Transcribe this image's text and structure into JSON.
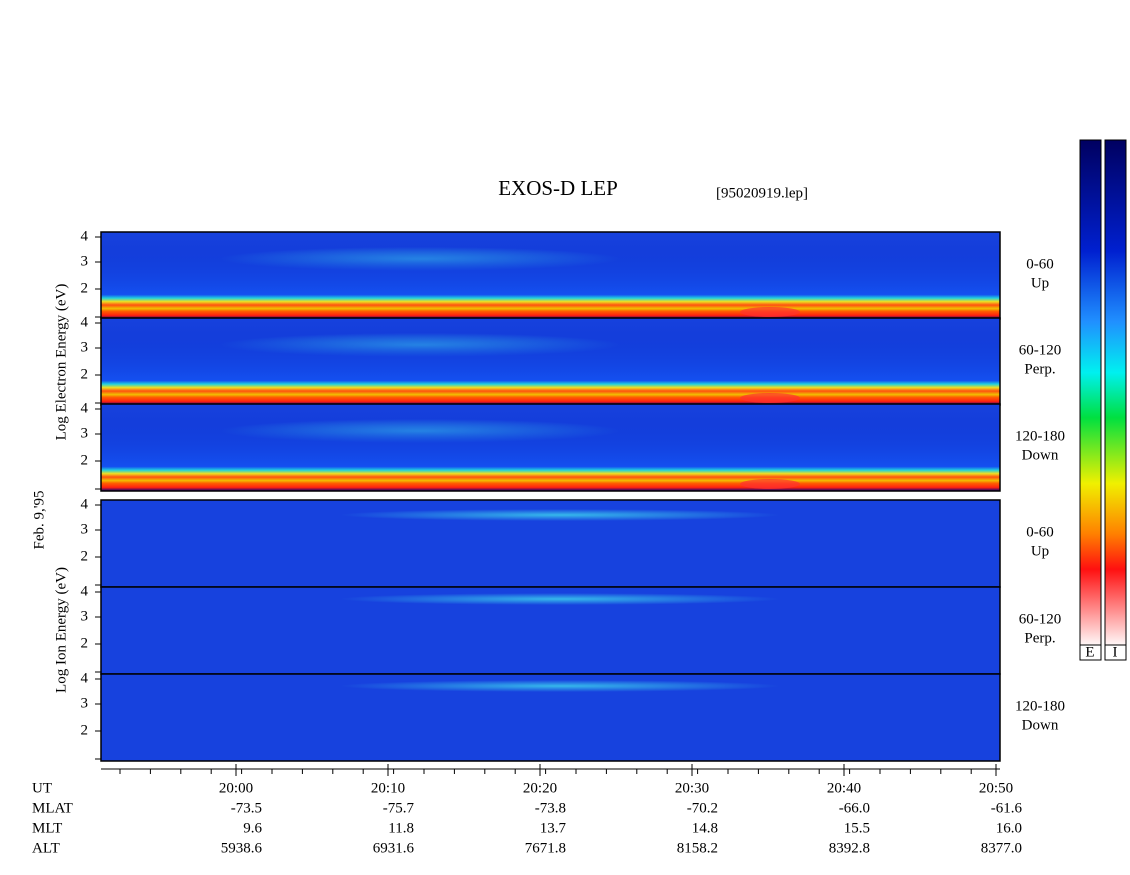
{
  "header": {
    "title": "EXOS-D LEP",
    "file": "[95020919.lep]"
  },
  "side_labels": {
    "electron": "Log  Electron  Energy (eV)",
    "ion": "Log  Ion  Energy (eV)",
    "date": "Feb. 9,'95"
  },
  "panels": [
    {
      "angle": "0-60",
      "direction": "Up",
      "yticks": [
        "4",
        "3",
        "2"
      ]
    },
    {
      "angle": "60-120",
      "direction": "Perp.",
      "yticks": [
        "4",
        "3",
        "2"
      ]
    },
    {
      "angle": "120-180",
      "direction": "Down",
      "yticks": [
        "4",
        "3",
        "2"
      ]
    },
    {
      "angle": "0-60",
      "direction": "Up",
      "yticks": [
        "4",
        "3",
        "2"
      ]
    },
    {
      "angle": "60-120",
      "direction": "Perp.",
      "yticks": [
        "4",
        "3",
        "2"
      ]
    },
    {
      "angle": "120-180",
      "direction": "Down",
      "yticks": [
        "4",
        "3",
        "2"
      ]
    }
  ],
  "color_bar_labels": [
    "E",
    "I"
  ],
  "footer": {
    "rows": [
      [
        "UT",
        "20:00",
        "20:10",
        "20:20",
        "20:30",
        "20:40",
        "20:50"
      ],
      [
        "MLAT",
        "-73.5",
        "-75.7",
        "-73.8",
        "-70.2",
        "-66.0",
        "-61.6"
      ],
      [
        "MLT",
        "9.6",
        "11.8",
        "13.7",
        "14.8",
        "15.5",
        "16.0"
      ],
      [
        "ALT",
        "5938.6",
        "6931.6",
        "7671.8",
        "8158.2",
        "8392.8",
        "8377.0"
      ]
    ]
  }
}
